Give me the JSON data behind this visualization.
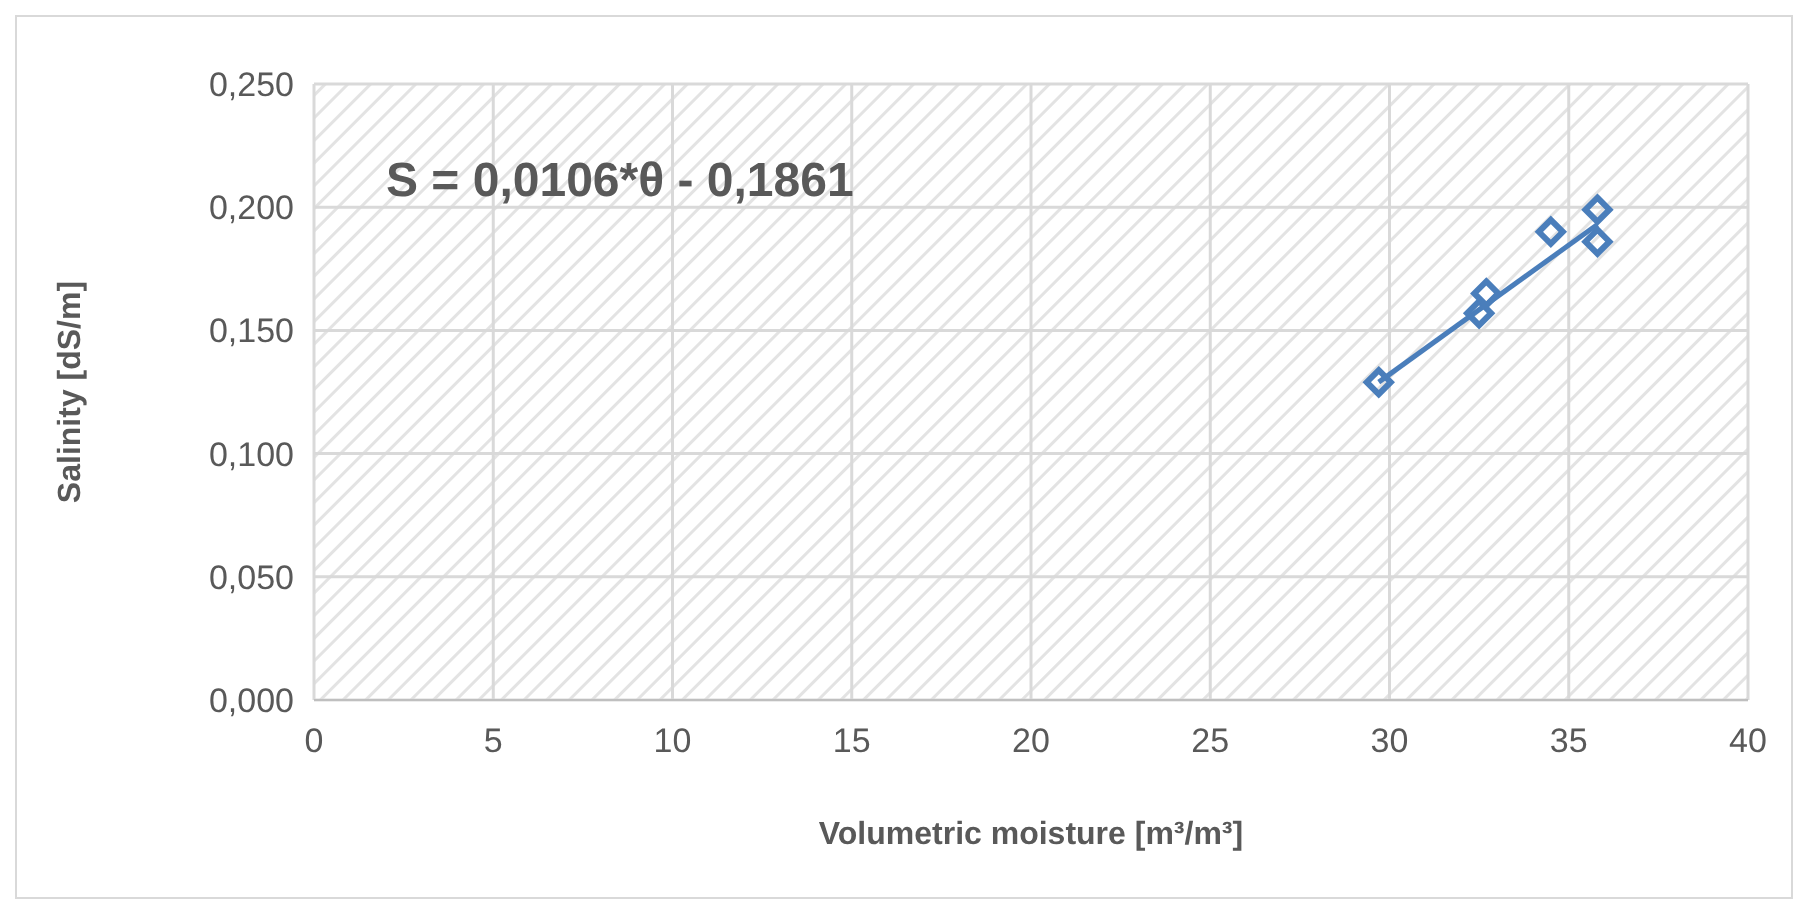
{
  "chart_data": {
    "type": "scatter",
    "xlabel": "Volumetric moisture [m³/m³]",
    "ylabel": "Salinity [dS/m]",
    "annotations": [
      "S = 0,0106*θ - 0,1861"
    ],
    "xlim": [
      0,
      40
    ],
    "xticks": [
      0,
      5,
      10,
      15,
      20,
      25,
      30,
      35,
      40
    ],
    "ylim": [
      0,
      0.25
    ],
    "yticks": [
      {
        "value": 0,
        "label": "0,000"
      },
      {
        "value": 0.05,
        "label": "0,050"
      },
      {
        "value": 0.1,
        "label": "0,100"
      },
      {
        "value": 0.15,
        "label": "0,150"
      },
      {
        "value": 0.2,
        "label": "0,200"
      },
      {
        "value": 0.25,
        "label": "0,250"
      }
    ],
    "grid": true,
    "marker": "diamond",
    "series": [
      {
        "color": "#4a7ebb",
        "x": [
          29.7,
          32.5,
          32.7,
          34.5,
          35.8,
          35.8
        ],
        "values": [
          0.129,
          0.157,
          0.165,
          0.19,
          0.199,
          0.186
        ]
      },
      {
        "type": "line",
        "color": "#4a7ebb",
        "marker": "none",
        "x": [
          29.7,
          35.8
        ],
        "values": [
          0.129,
          0.193
        ]
      }
    ]
  }
}
